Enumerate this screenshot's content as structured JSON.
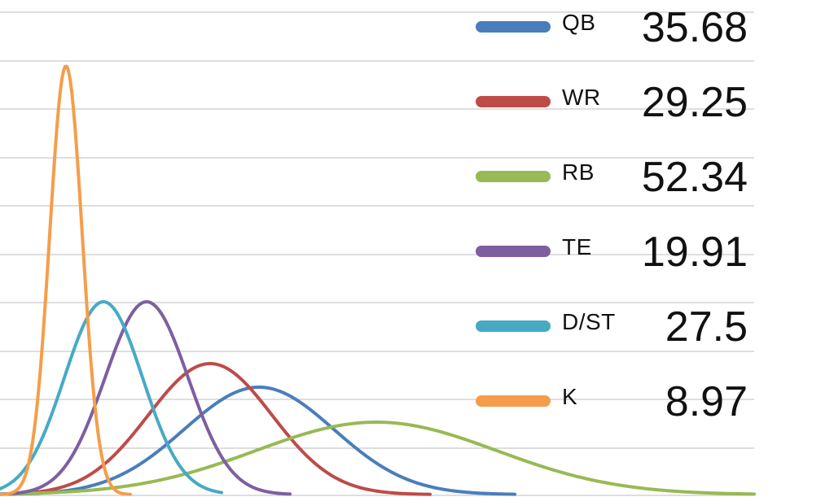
{
  "chart_data": {
    "type": "line",
    "title": "",
    "xlabel": "",
    "ylabel": "",
    "grid": true,
    "legend_position": "right",
    "series": [
      {
        "name": "QB",
        "value": "35.68",
        "color": "#4a7ebb",
        "mean": 35.68
      },
      {
        "name": "WR",
        "value": "29.25",
        "color": "#be4b48",
        "mean": 29.25
      },
      {
        "name": "RB",
        "value": "52.34",
        "color": "#98b954",
        "mean": 52.34
      },
      {
        "name": "TE",
        "value": "19.91",
        "color": "#7d5fa0",
        "mean": 19.91
      },
      {
        "name": "D/ST",
        "value": "27.5",
        "color": "#46aac5",
        "mean": 27.5
      },
      {
        "name": "K",
        "value": "8.97",
        "color": "#f59d4a",
        "mean": 8.97
      }
    ]
  }
}
